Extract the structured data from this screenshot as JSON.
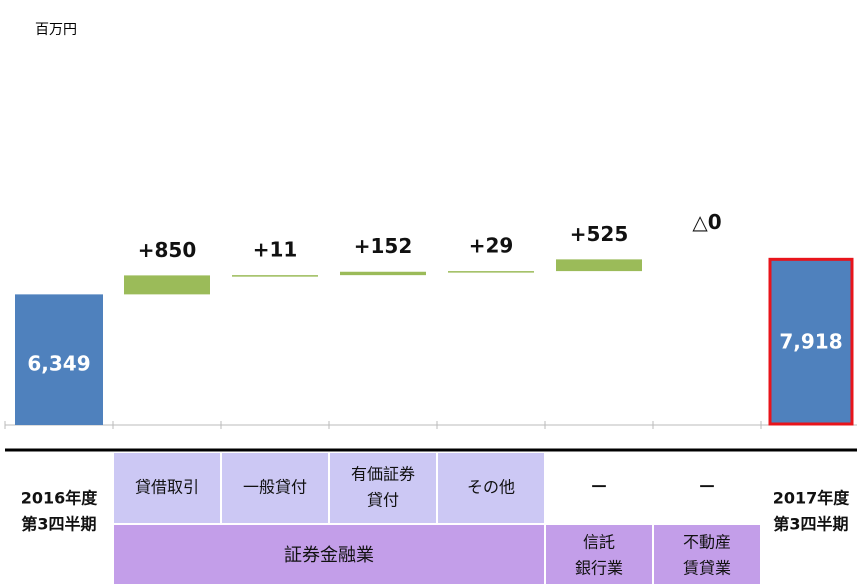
{
  "chart_data": {
    "type": "waterfall",
    "unit_label": "百万円",
    "start_value": 6349,
    "start_label": "6,349",
    "values": [
      850,
      11,
      152,
      29,
      525,
      0
    ],
    "value_labels": [
      "+850",
      "+11",
      "+152",
      "+29",
      "+525",
      "△0"
    ],
    "end_value": 7918,
    "end_label": "7,918",
    "total_color": "#4f81bd",
    "step_color": "#9bbb59",
    "highlight_color": "#e8141b",
    "ylim": [
      500,
      9500
    ]
  },
  "table": {
    "start_period": [
      "2016年度",
      "第3四半期"
    ],
    "end_period": [
      "2017年度",
      "第3四半期"
    ],
    "subcategories": [
      [
        "貸借取引"
      ],
      [
        "一般貸付"
      ],
      [
        "有価証券",
        "貸付"
      ],
      [
        "その他"
      ],
      [
        "－"
      ],
      [
        "－"
      ]
    ],
    "segments": [
      [
        "証券金融業"
      ],
      [
        "信託",
        "銀行業"
      ],
      [
        "不動産",
        "賃貸業"
      ]
    ]
  }
}
